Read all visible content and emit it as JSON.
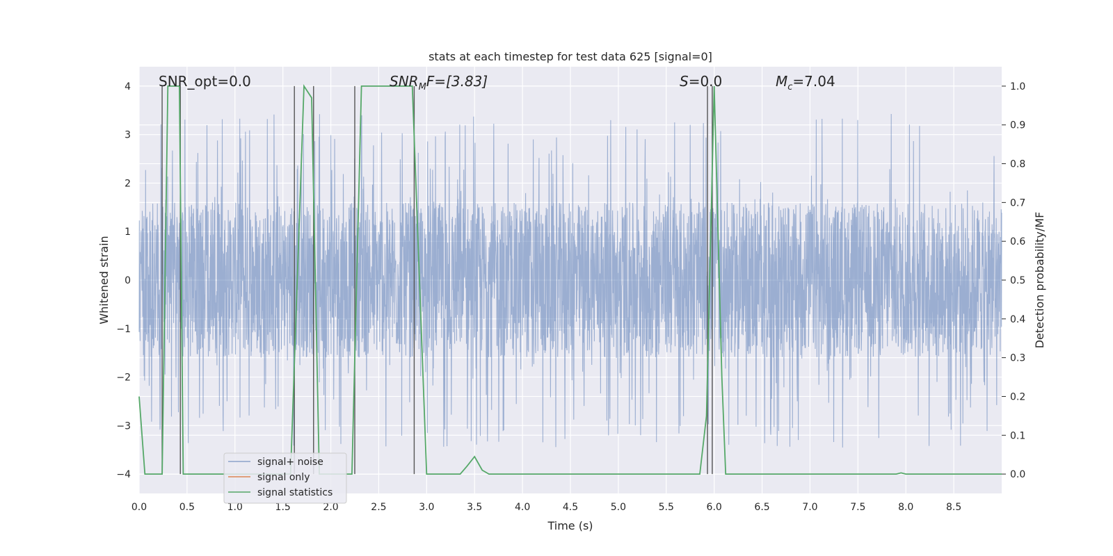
{
  "chart_data": {
    "type": "line",
    "title": "stats at each timestep for test data 625 [signal=0]",
    "xlabel": "Time (s)",
    "ylabel": "Whitened strain",
    "ylabel_right": "Detection probability/MF",
    "xlim": [
      0,
      9.0
    ],
    "ylim": [
      -4.4,
      4.4
    ],
    "ylim_right": [
      -0.05,
      1.05
    ],
    "x_ticks": [
      0.0,
      0.5,
      1.0,
      1.5,
      2.0,
      2.5,
      3.0,
      3.5,
      4.0,
      4.5,
      5.0,
      5.5,
      6.0,
      6.5,
      7.0,
      7.5,
      8.0,
      8.5
    ],
    "x_tick_labels": [
      "0.0",
      "0.5",
      "1.0",
      "1.5",
      "2.0",
      "2.5",
      "3.0",
      "3.5",
      "4.0",
      "4.5",
      "5.0",
      "5.5",
      "6.0",
      "6.5",
      "7.0",
      "7.5",
      "8.0",
      "8.5"
    ],
    "y_ticks": [
      -4,
      -3,
      -2,
      -1,
      0,
      1,
      2,
      3,
      4
    ],
    "y_tick_labels": [
      "−4",
      "−3",
      "−2",
      "−1",
      "0",
      "1",
      "2",
      "3",
      "4"
    ],
    "y2_ticks": [
      0.0,
      0.1,
      0.2,
      0.3,
      0.4,
      0.5,
      0.6,
      0.7,
      0.8,
      0.9,
      1.0
    ],
    "y2_tick_labels": [
      "0.0",
      "0.1",
      "0.2",
      "0.3",
      "0.4",
      "0.5",
      "0.6",
      "0.7",
      "0.8",
      "0.9",
      "1.0"
    ],
    "grid": true,
    "legend_position": "lower-left",
    "series": [
      {
        "name": "signal+ noise",
        "color": "#4c72b0",
        "opacity": 0.5,
        "kind": "noise",
        "typical_envelope": [
          -1.6,
          1.6
        ],
        "peak_max": 3.8,
        "peak_min": -3.8
      },
      {
        "name": "signal only",
        "color": "#dd8452",
        "values": []
      },
      {
        "name": "signal statistics",
        "color": "#55a868",
        "axis": "right",
        "x": [
          0.0,
          0.06,
          0.24,
          0.3,
          0.42,
          0.46,
          0.55,
          1.58,
          1.65,
          1.72,
          1.8,
          1.88,
          2.15,
          2.22,
          2.32,
          2.85,
          3.0,
          3.05,
          3.35,
          3.42,
          3.5,
          3.58,
          3.65,
          5.85,
          5.92,
          6.0,
          6.08,
          6.12,
          6.5,
          7.9,
          7.95,
          8.0,
          9.0
        ],
        "values": [
          0.2,
          0.0,
          0.0,
          1.0,
          1.0,
          0.0,
          0.0,
          0.0,
          0.5,
          1.0,
          0.97,
          0.0,
          0.0,
          0.0,
          1.0,
          1.0,
          0.0,
          0.0,
          0.0,
          0.02,
          0.045,
          0.01,
          0.0,
          0.0,
          0.15,
          1.0,
          0.25,
          0.0,
          0.0,
          0.0,
          0.003,
          0.0,
          0.0
        ]
      }
    ],
    "vlines_x": [
      0.24,
      0.43,
      1.62,
      1.82,
      2.25,
      2.87,
      5.93,
      5.98
    ],
    "vline_color": "#555555",
    "annotations": [
      {
        "text": "SNR_opt=0.0"
      },
      {
        "text": "SNR",
        "sub": "M",
        "suffix": "F=[3.83]",
        "italic": true
      },
      {
        "text": "S",
        "suffix": "=0.0",
        "italic": true
      },
      {
        "text": "M",
        "sub": "c",
        "suffix": "=7.04",
        "italic": true
      }
    ]
  }
}
